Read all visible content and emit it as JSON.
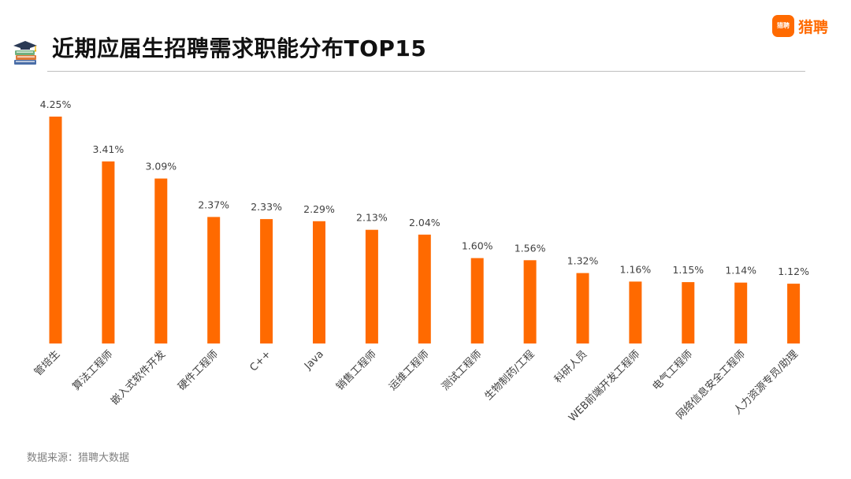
{
  "header": {
    "title": "近期应届生招聘需求职能分布TOP15",
    "logo_mark": "猎聘",
    "logo_text": "猎聘",
    "title_icon": "graduation-books-icon"
  },
  "colors": {
    "bar": "#FF6A00",
    "accent": "#FF6A00",
    "title": "#111111",
    "source": "#808080"
  },
  "chart_data": {
    "type": "bar",
    "title": "近期应届生招聘需求职能分布TOP15",
    "xlabel": "",
    "ylabel": "",
    "ylim": [
      0,
      4.5
    ],
    "grid": false,
    "legend": "none",
    "categories": [
      "管培生",
      "算法工程师",
      "嵌入式软件开发",
      "硬件工程师",
      "C++",
      "Java",
      "销售工程师",
      "运维工程师",
      "测试工程师",
      "生物制药/工程",
      "科研人员",
      "WEB前端开发工程师",
      "电气工程师",
      "网络信息安全工程师",
      "人力资源专员/助理"
    ],
    "values": [
      4.25,
      3.41,
      3.09,
      2.37,
      2.33,
      2.29,
      2.13,
      2.04,
      1.6,
      1.56,
      1.32,
      1.16,
      1.15,
      1.14,
      1.12
    ],
    "labels": [
      "4.25%",
      "3.41%",
      "3.09%",
      "2.37%",
      "2.33%",
      "2.29%",
      "2.13%",
      "2.04%",
      "1.60%",
      "1.56%",
      "1.32%",
      "1.16%",
      "1.15%",
      "1.14%",
      "1.12%"
    ]
  },
  "footer": {
    "source": "数据来源：猎聘大数据"
  }
}
